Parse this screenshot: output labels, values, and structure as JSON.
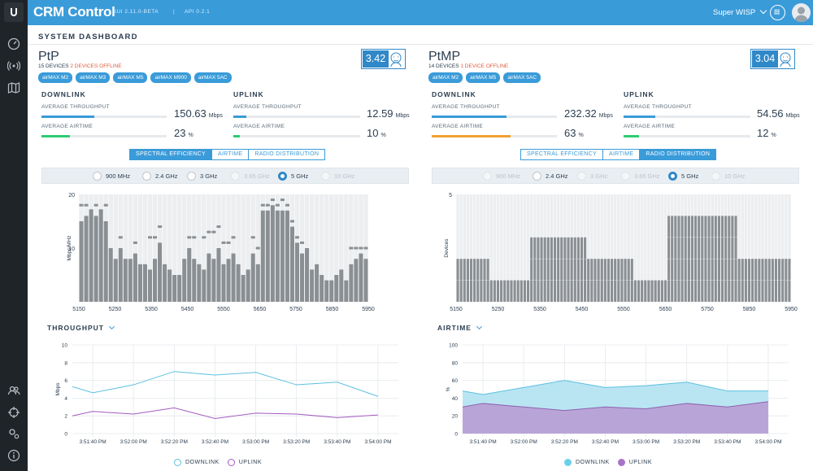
{
  "app": {
    "title": "CRM Control",
    "gui_version": "GUI 2.11.0-BETA",
    "sep": "|",
    "api_version": "API 0.2.1",
    "user": "Super WISP"
  },
  "dashboard_title": "SYSTEM DASHBOARD",
  "colors": {
    "accent": "#3a9bd9",
    "downlink": "#5bc0de",
    "uplink": "#a45ac0",
    "airtime_dl": "#f0a030",
    "airtime_ul": "#2ecc71",
    "offline": "#e05c3e",
    "bars": "#8a8f93"
  },
  "ptp": {
    "name": "PtP",
    "devices": "15 DEVICES",
    "offline": "2 DEVICES OFFLINE",
    "tags": [
      "airMAX M2",
      "airMAX M3",
      "airMAX M5",
      "airMAX M900",
      "airMAX 5AC"
    ],
    "score": "3.42",
    "downlink": {
      "title": "DOWNLINK",
      "tp_label": "AVERAGE THROUGHPUT",
      "tp_value": "150.63",
      "tp_unit": "Mbps",
      "tp_fill": 0.42,
      "at_label": "AVERAGE AIRTIME",
      "at_value": "23",
      "at_unit": "%",
      "at_fill": 0.23
    },
    "uplink": {
      "title": "UPLINK",
      "tp_label": "AVERAGE THROUGHPUT",
      "tp_value": "12.59",
      "tp_unit": "Mbps",
      "tp_fill": 0.1,
      "at_label": "AVERAGE AIRTIME",
      "at_value": "10",
      "at_unit": "%",
      "at_fill": 0.05
    },
    "tabs": [
      "SPECTRAL EFFICIENCY",
      "AIRTIME",
      "RADIO DISTRIBUTION"
    ],
    "active_tab": 0,
    "radios": [
      {
        "label": "900 MHz",
        "state": "off"
      },
      {
        "label": "2.4 GHz",
        "state": "off"
      },
      {
        "label": "3 GHz",
        "state": "off"
      },
      {
        "label": "3.65 GHz",
        "state": "disabled"
      },
      {
        "label": "5 GHz",
        "state": "selected"
      },
      {
        "label": "10 GHz",
        "state": "disabled"
      }
    ],
    "lower_title": "THROUGHPUT",
    "legend": [
      "DOWNLINK",
      "UPLINK"
    ]
  },
  "ptmp": {
    "name": "PtMP",
    "devices": "14 DEVICES",
    "offline": "1 DEVICE OFFLINE",
    "tags": [
      "airMAX M2",
      "airMAX M5",
      "airMAX 5AC"
    ],
    "score": "3.04",
    "downlink": {
      "title": "DOWNLINK",
      "tp_label": "AVERAGE THROUGHPUT",
      "tp_value": "232.32",
      "tp_unit": "Mbps",
      "tp_fill": 0.6,
      "at_label": "AVERAGE AIRTIME",
      "at_value": "63",
      "at_unit": "%",
      "at_fill": 0.63
    },
    "uplink": {
      "title": "UPLINK",
      "tp_label": "AVERAGE THROUGHPUT",
      "tp_value": "54.56",
      "tp_unit": "Mbps",
      "tp_fill": 0.25,
      "at_label": "AVERAGE AIRTIME",
      "at_value": "12",
      "at_unit": "%",
      "at_fill": 0.12
    },
    "tabs": [
      "SPECTRAL EFFICIENCY",
      "AIRTIME",
      "RADIO DISTRIBUTION"
    ],
    "active_tab": 2,
    "radios": [
      {
        "label": "900 MHz",
        "state": "disabled"
      },
      {
        "label": "2.4 GHz",
        "state": "off"
      },
      {
        "label": "3 GHz",
        "state": "disabled"
      },
      {
        "label": "3.65 GHz",
        "state": "disabled"
      },
      {
        "label": "5 GHz",
        "state": "selected"
      },
      {
        "label": "10 GHz",
        "state": "disabled"
      }
    ],
    "lower_title": "AIRTIME",
    "legend": [
      "DOWNLINK",
      "UPLINK"
    ]
  },
  "chart_data": [
    {
      "id": "ptp-spectral",
      "type": "bar",
      "ylabel": "Mbps/MHz",
      "ylim": [
        0,
        20
      ],
      "yticks": [
        10,
        20
      ],
      "xlim": [
        5150,
        5950
      ],
      "xticks": [
        5150,
        5250,
        5350,
        5450,
        5550,
        5650,
        5750,
        5850,
        5950
      ],
      "values": [
        15,
        16,
        17,
        16,
        17,
        15,
        10,
        8,
        10,
        8,
        8,
        9,
        7,
        7,
        6,
        8,
        11,
        7,
        6,
        5,
        5,
        8,
        10,
        8,
        7,
        6,
        9,
        8,
        10,
        7,
        8,
        9,
        7,
        5,
        6,
        9,
        7,
        17,
        17,
        18,
        17,
        17,
        17,
        14,
        11,
        9,
        10,
        6,
        7,
        5,
        4,
        4,
        5,
        6,
        4,
        7,
        8,
        9,
        8
      ],
      "top_marks": [
        18,
        18,
        17,
        18,
        17,
        18,
        null,
        null,
        12,
        null,
        null,
        11,
        null,
        null,
        12,
        12,
        14,
        null,
        null,
        null,
        null,
        null,
        12,
        12,
        null,
        12,
        13,
        13,
        14,
        11,
        11,
        12,
        null,
        null,
        null,
        12,
        10,
        18,
        18,
        19,
        18,
        19,
        18,
        15,
        12,
        11,
        null,
        null,
        null,
        null,
        null,
        null,
        null,
        null,
        null,
        10,
        10,
        10,
        10
      ]
    },
    {
      "id": "ptmp-radio",
      "type": "bar",
      "ylabel": "Devices",
      "ylim": [
        0,
        5
      ],
      "yticks": [
        5
      ],
      "xlim": [
        5150,
        5950
      ],
      "xticks": [
        5150,
        5250,
        5350,
        5450,
        5550,
        5650,
        5750,
        5850,
        5950
      ],
      "values": [
        2,
        2,
        2,
        2,
        2,
        2,
        2,
        2,
        2,
        2,
        1,
        1,
        1,
        1,
        1,
        1,
        1,
        1,
        1,
        1,
        1,
        1,
        3,
        3,
        3,
        3,
        3,
        3,
        3,
        3,
        3,
        3,
        3,
        3,
        3,
        3,
        3,
        3,
        3,
        2,
        2,
        2,
        2,
        2,
        2,
        2,
        2,
        2,
        2,
        2,
        2,
        2,
        2,
        1,
        1,
        1,
        1,
        1,
        1,
        1,
        1,
        1,
        1,
        4,
        4,
        4,
        4,
        4,
        4,
        4,
        4,
        4,
        4,
        4,
        4,
        4,
        4,
        4,
        4,
        4,
        4,
        4,
        4,
        4,
        2,
        2,
        2,
        2,
        2,
        2,
        2,
        2,
        2,
        2,
        2,
        2,
        2,
        2,
        2,
        2
      ]
    },
    {
      "id": "ptp-throughput",
      "type": "line",
      "ylabel": "Mbps",
      "ylim": [
        0,
        10
      ],
      "yticks": [
        0,
        2,
        4,
        6,
        8,
        10
      ],
      "categories": [
        "3:51:40 PM",
        "3:52:00 PM",
        "3:52:20 PM",
        "3:52:40 PM",
        "3:53:00 PM",
        "3:53:20 PM",
        "3:53:40 PM",
        "3:54:00 PM"
      ],
      "series": [
        {
          "name": "DOWNLINK",
          "x": [
            0,
            0.5,
            1.5,
            2.5,
            3.5,
            4.5,
            5.5,
            6.5,
            7.5
          ],
          "values": [
            5.3,
            4.6,
            5.5,
            7.0,
            6.6,
            6.9,
            5.5,
            5.8,
            4.2
          ]
        },
        {
          "name": "UPLINK",
          "x": [
            0,
            0.5,
            1.5,
            2.5,
            3.5,
            4.5,
            5.5,
            6.5,
            7.5
          ],
          "values": [
            2.0,
            2.5,
            2.2,
            2.9,
            1.7,
            2.3,
            2.2,
            1.8,
            2.1
          ]
        }
      ]
    },
    {
      "id": "ptmp-airtime",
      "type": "area",
      "ylabel": "%",
      "ylim": [
        0,
        100
      ],
      "yticks": [
        0,
        20,
        40,
        60,
        80,
        100
      ],
      "categories": [
        "3:51:40 PM",
        "3:52:00 PM",
        "3:52:20 PM",
        "3:52:40 PM",
        "3:53:00 PM",
        "3:53:20 PM",
        "3:53:40 PM",
        "3:54:00 PM"
      ],
      "series": [
        {
          "name": "DOWNLINK",
          "x": [
            0,
            0.5,
            1.5,
            2.5,
            3.5,
            4.5,
            5.5,
            6.5,
            7.5
          ],
          "values": [
            48,
            44,
            52,
            60,
            52,
            54,
            58,
            48,
            48
          ]
        },
        {
          "name": "UPLINK",
          "x": [
            0,
            0.5,
            1.5,
            2.5,
            3.5,
            4.5,
            5.5,
            6.5,
            7.5
          ],
          "values": [
            30,
            34,
            30,
            26,
            30,
            28,
            34,
            30,
            36
          ]
        }
      ]
    }
  ]
}
